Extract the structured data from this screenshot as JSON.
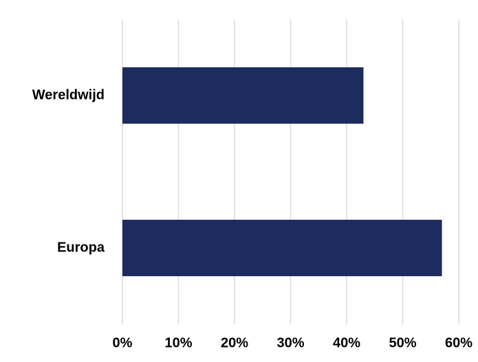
{
  "chart_data": {
    "type": "bar",
    "orientation": "horizontal",
    "categories": [
      "Wereldwijd",
      "Europa"
    ],
    "values": [
      43,
      57
    ],
    "value_unit": "%",
    "title": "",
    "xlabel": "",
    "ylabel": "",
    "xlim": [
      0,
      60
    ],
    "ticks": [
      "0%",
      "10%",
      "20%",
      "30%",
      "40%",
      "50%",
      "60%"
    ],
    "grid": "vertical",
    "legend": "none",
    "bar_color": "#1c2c5e",
    "grid_color": "#d9d9d9"
  }
}
